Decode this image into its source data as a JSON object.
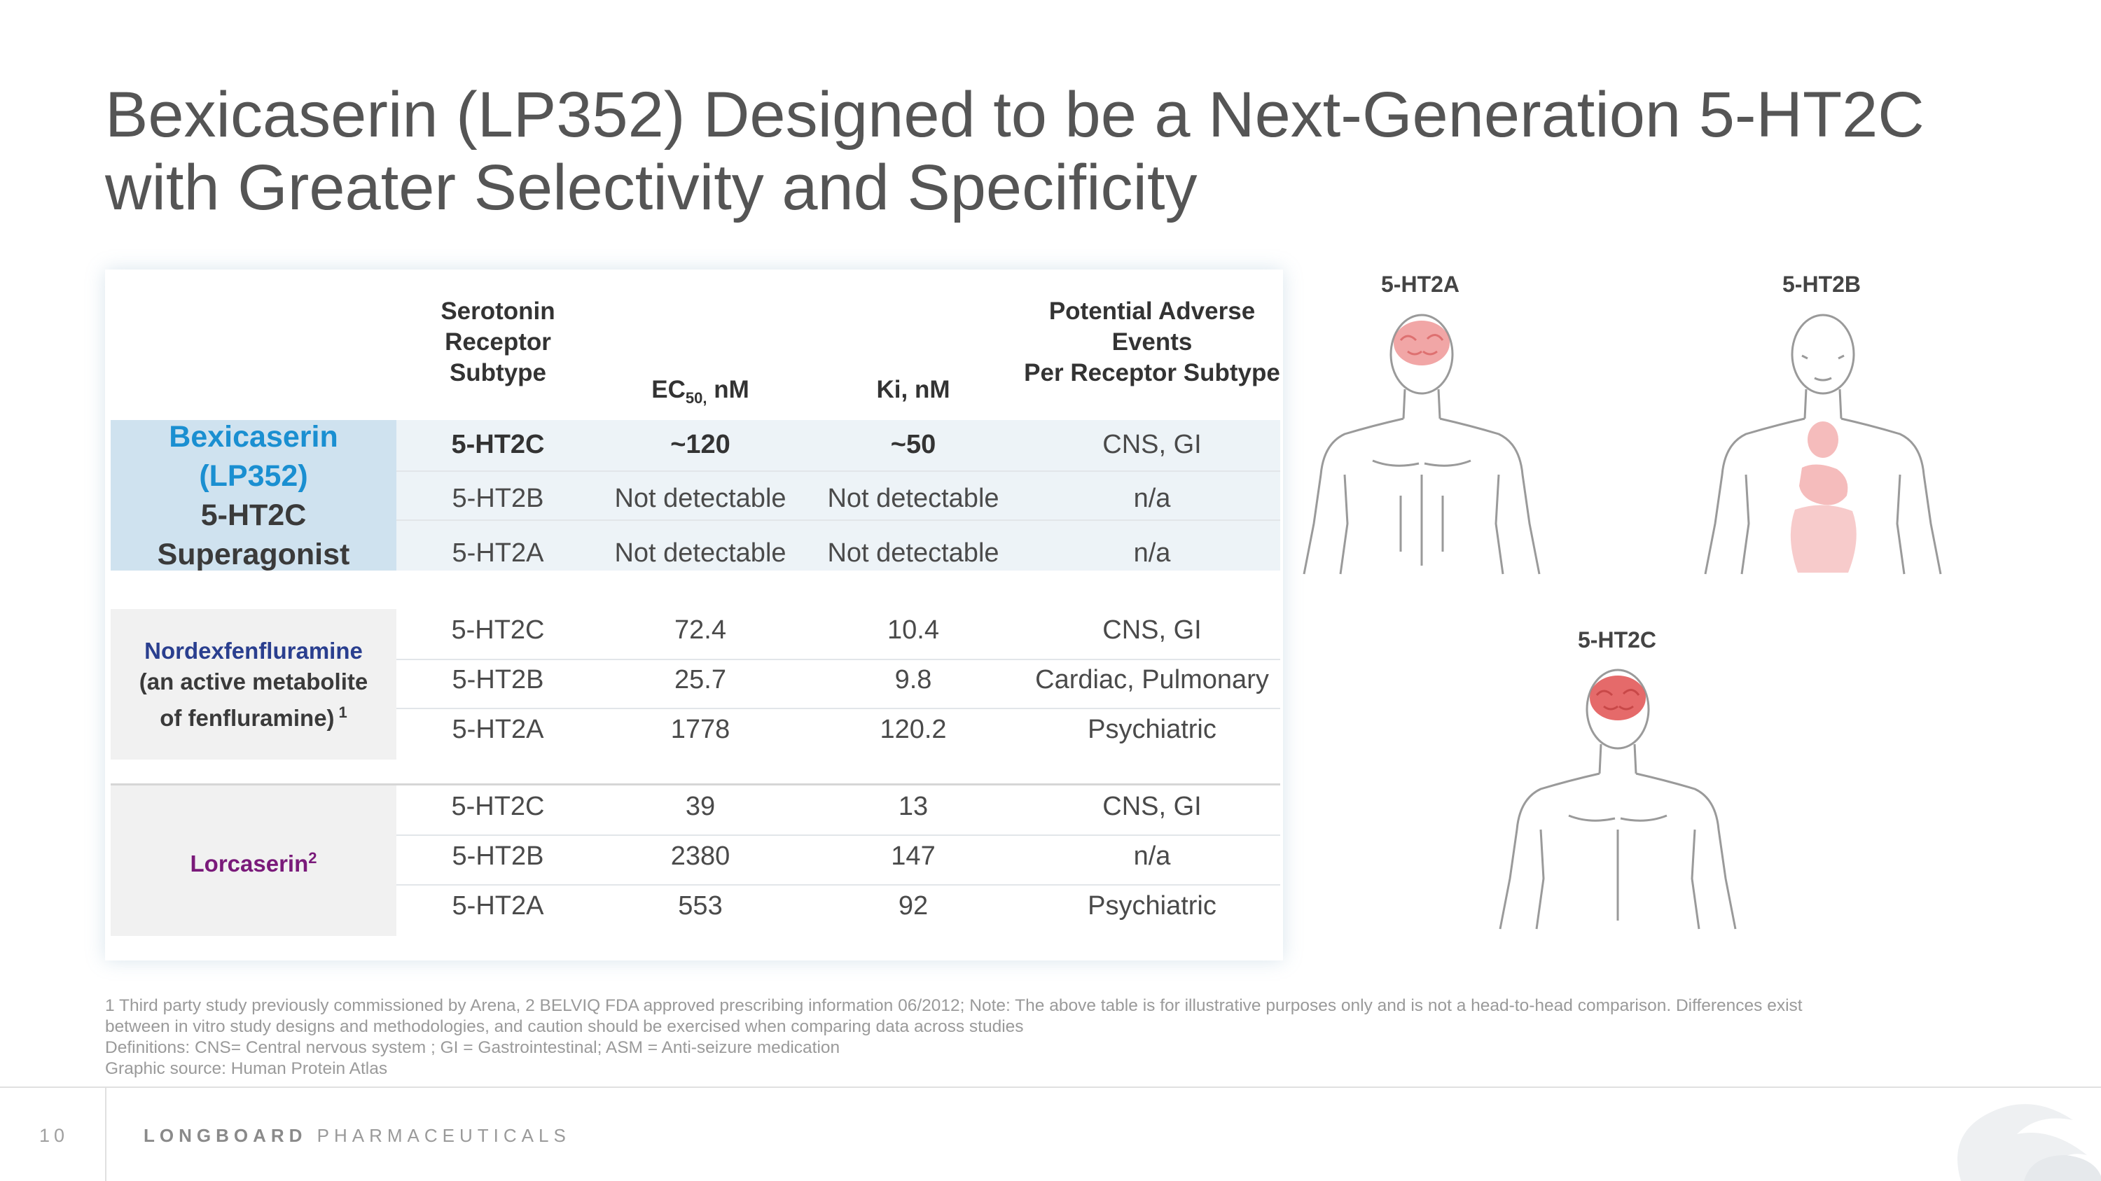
{
  "title": {
    "line1": "Bexicaserin (LP352) Designed to be a Next-Generation 5-HT2C",
    "line2": "with Greater Selectivity and Specificity"
  },
  "table": {
    "headers": {
      "subtype": [
        "Serotonin",
        "Receptor",
        "Subtype"
      ],
      "ec50_main": "EC",
      "ec50_sub": "50,",
      "ec50_unit": " nM",
      "ki": "Ki, nM",
      "adverse": [
        "Potential Adverse",
        "Events",
        "Per Receptor Subtype"
      ]
    },
    "groups": [
      {
        "name": "Bexicaserin (LP352)",
        "sub1": "5-HT2C",
        "sub2": "Superagonist",
        "rows": [
          {
            "subtype": "5-HT2C",
            "ec50": "~120",
            "ki": "~50",
            "adverse": "CNS, GI"
          },
          {
            "subtype": "5-HT2B",
            "ec50": "Not detectable",
            "ki": "Not detectable",
            "adverse": "n/a"
          },
          {
            "subtype": "5-HT2A",
            "ec50": "Not detectable",
            "ki": "Not detectable",
            "adverse": "n/a"
          }
        ]
      },
      {
        "name": "Nordexfenfluramine",
        "sub1": "(an active metabolite",
        "sub2": "of fenfluramine)",
        "sup": "1",
        "rows": [
          {
            "subtype": "5-HT2C",
            "ec50": "72.4",
            "ki": "10.4",
            "adverse": "CNS, GI"
          },
          {
            "subtype": "5-HT2B",
            "ec50": "25.7",
            "ki": "9.8",
            "adverse": "Cardiac, Pulmonary"
          },
          {
            "subtype": "5-HT2A",
            "ec50": "1778",
            "ki": "120.2",
            "adverse": "Psychiatric"
          }
        ]
      },
      {
        "name": "Lorcaserin",
        "sup": "2",
        "rows": [
          {
            "subtype": "5-HT2C",
            "ec50": "39",
            "ki": "13",
            "adverse": "CNS, GI"
          },
          {
            "subtype": "5-HT2B",
            "ec50": "2380",
            "ki": "147",
            "adverse": "n/a"
          },
          {
            "subtype": "5-HT2A",
            "ec50": "553",
            "ki": "92",
            "adverse": "Psychiatric"
          }
        ]
      }
    ]
  },
  "figures": {
    "a_label": "5-HT2A",
    "b_label": "5-HT2B",
    "c_label": "5-HT2C"
  },
  "footnotes": {
    "line1": "1 Third party study previously commissioned by Arena, 2 BELVIQ FDA approved prescribing information 06/2012; Note: The above table is for illustrative purposes only and is not a head-to-head comparison.  Differences exist",
    "line2": "between in vitro study designs and methodologies, and caution should be exercised when comparing data across studies",
    "line3": "Definitions: CNS= Central nervous system ; GI = Gastrointestinal; ASM = Anti-seizure medication",
    "line4": "Graphic source: Human Protein Atlas"
  },
  "footer": {
    "page": "10",
    "brand_bold": "LONGBOARD",
    "brand_rest": " PHARMACEUTICALS"
  },
  "colors": {
    "bexi_blue": "#1a8fd1",
    "nord_navy": "#2a3f8f",
    "lorc_purple": "#7a1a7a",
    "organ_red": "#e86a6a"
  }
}
